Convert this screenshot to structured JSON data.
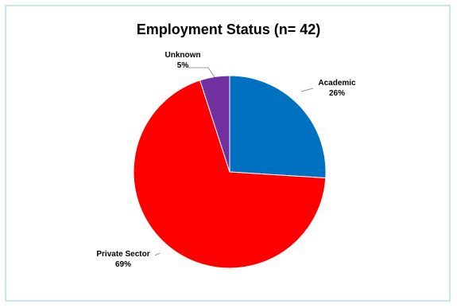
{
  "chart_data": {
    "type": "pie",
    "title": "Employment Status (n= 42)",
    "slices": [
      {
        "label": "Academic",
        "value": 26,
        "value_label": "26%",
        "color": "#0070c0"
      },
      {
        "label": "Private Sector",
        "value": 69,
        "value_label": "69%",
        "color": "#ff0000"
      },
      {
        "label": "Unknown",
        "value": 5,
        "value_label": "5%",
        "color": "#7030a0"
      }
    ],
    "legend": "none"
  }
}
